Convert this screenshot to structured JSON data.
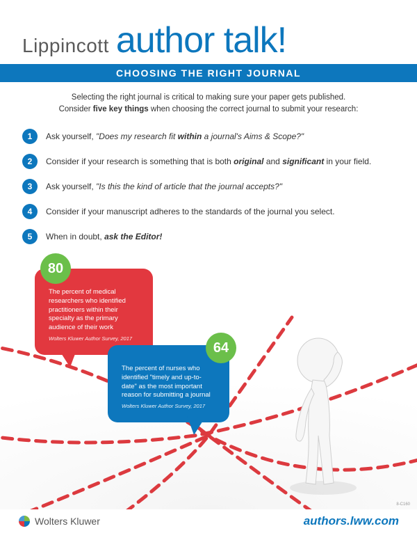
{
  "header": {
    "brand": "Lippincott",
    "title": "author talk!",
    "subtitle": "CHOOSING THE RIGHT JOURNAL"
  },
  "intro": {
    "line1": "Selecting the right journal is critical to making sure your paper gets published.",
    "line2_pre": "Consider ",
    "line2_bold": "five key things",
    "line2_post": " when choosing the correct journal to submit your research:"
  },
  "tips": [
    {
      "num": "1",
      "html": "Ask yourself, <em>\"Does my research fit <strong>within</strong> a journal's Aims & Scope?\"</em>"
    },
    {
      "num": "2",
      "html": "Consider if your research is something that is both <strong>original</strong> and <strong>significant</strong> in your field."
    },
    {
      "num": "3",
      "html": "Ask yourself, <em>\"Is this the kind of article that the journal accepts?\"</em>"
    },
    {
      "num": "4",
      "html": "Consider if your manuscript adheres to the standards of the journal you select."
    },
    {
      "num": "5",
      "html": "When in doubt, <strong>ask the Editor!</strong>"
    }
  ],
  "stats": {
    "red": {
      "value": "80",
      "text": "The percent of medical researchers who identified practitioners within their specialty as the primary audience of their work",
      "source": "Wolters Kluwer Author Survey, 2017"
    },
    "blue": {
      "value": "64",
      "text": "The percent of nurses who identified \"timely and up-to-date\" as the most important reason for submitting a journal",
      "source": "Wolters Kluwer Author Survey, 2017"
    }
  },
  "colors": {
    "primary_blue": "#0d77bd",
    "accent_red": "#e2383f",
    "accent_green": "#6bbf4a",
    "text": "#333333",
    "path": "#dc3a3f"
  },
  "footer": {
    "company": "Wolters Kluwer",
    "url": "authors.lww.com",
    "code": "8-C160"
  }
}
